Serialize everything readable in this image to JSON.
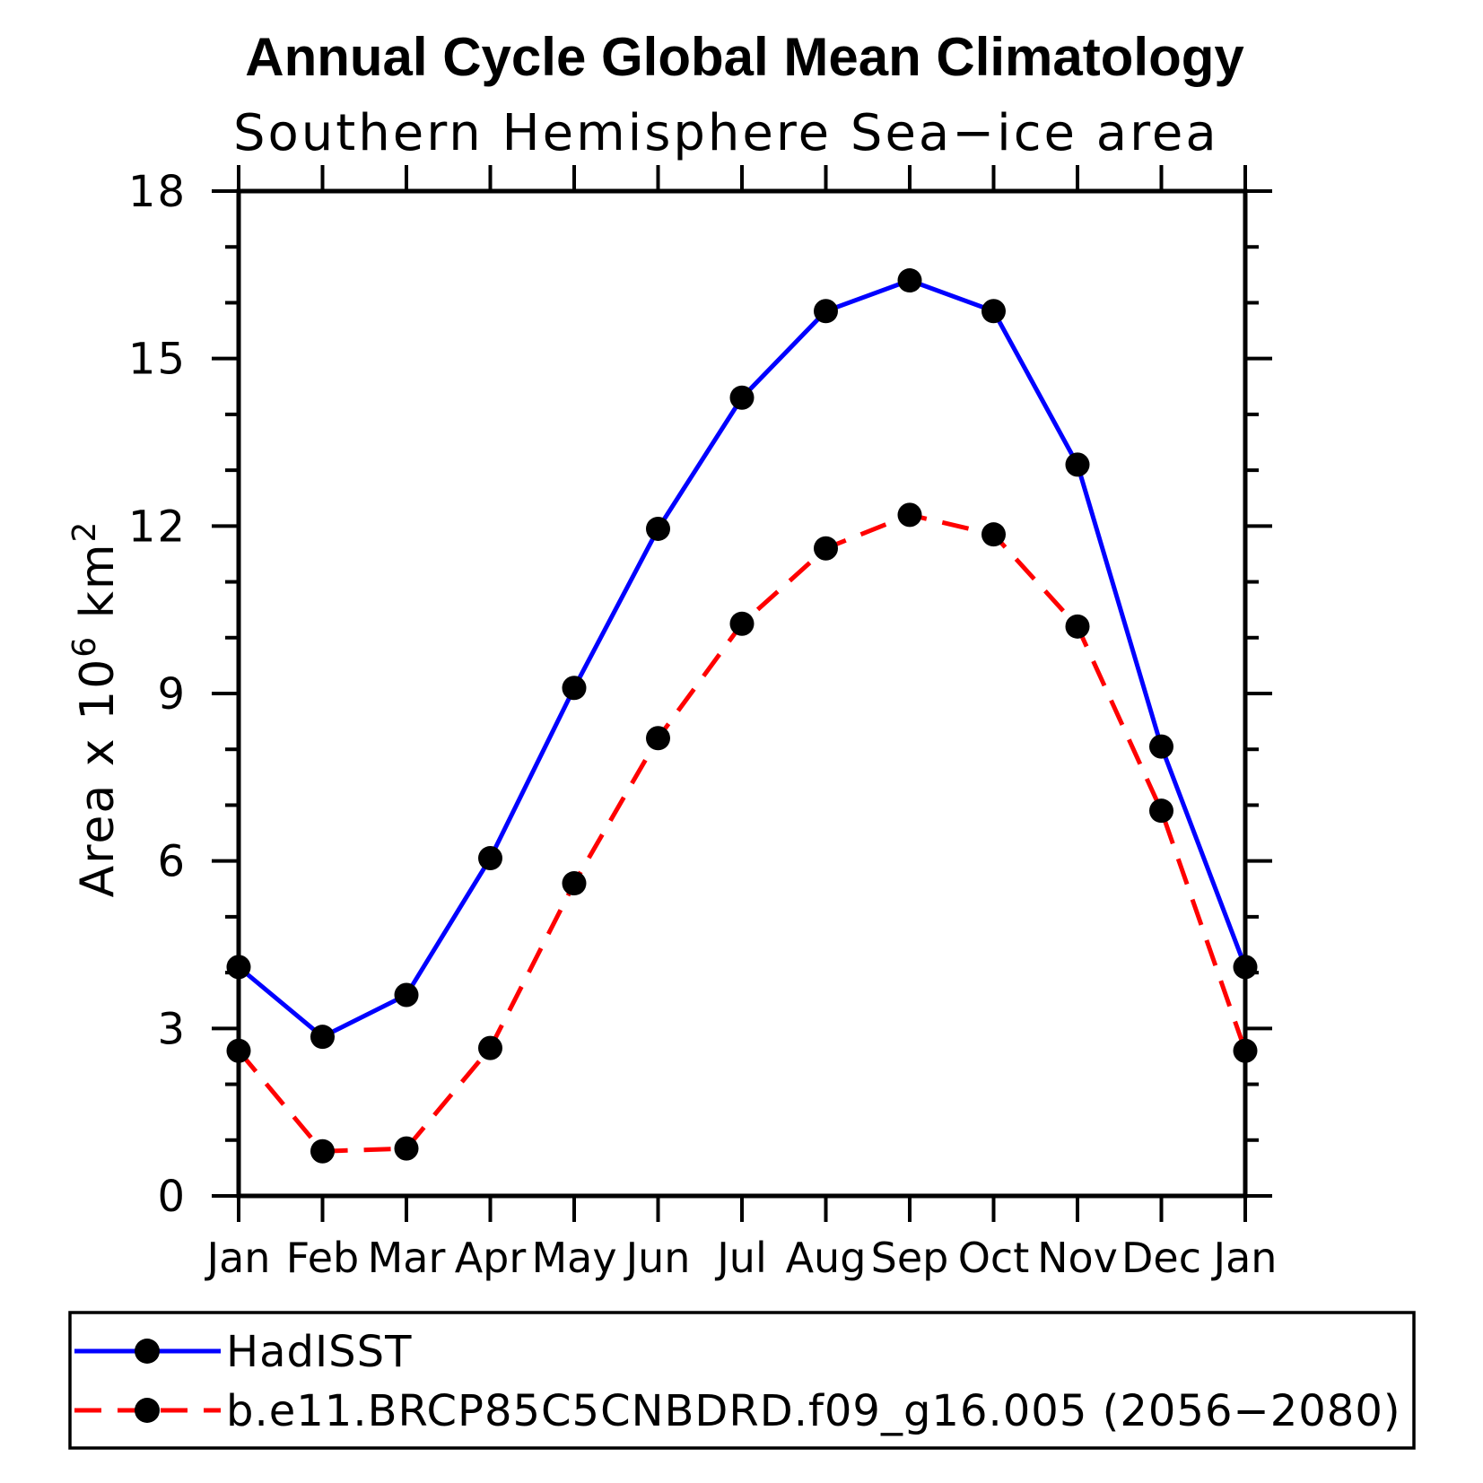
{
  "page": {
    "background": "#ffffff",
    "text_color": "#000000"
  },
  "chart_data": {
    "type": "line",
    "title": "Annual Cycle Global Mean Climatology",
    "subtitle": "Southern Hemisphere Sea−ice area",
    "ylabel_parts": [
      {
        "text": "Area x 10"
      },
      {
        "text": "6",
        "sup": true
      },
      {
        "text": " km"
      },
      {
        "text": "2",
        "sup": true
      }
    ],
    "categories": [
      "Jan",
      "Feb",
      "Mar",
      "Apr",
      "May",
      "Jun",
      "Jul",
      "Aug",
      "Sep",
      "Oct",
      "Nov",
      "Dec",
      "Jan"
    ],
    "ylim": [
      0,
      18
    ],
    "y_major_ticks": [
      0,
      3,
      6,
      9,
      12,
      15,
      18
    ],
    "y_minor_step": 1,
    "grid": false,
    "legend_position": "bottom",
    "series": [
      {
        "name": "HadISST",
        "color": "#0000ff",
        "line_style": "solid",
        "marker": "filled-circle",
        "marker_color": "#000000",
        "values": [
          4.1,
          2.85,
          3.6,
          6.05,
          9.1,
          11.95,
          14.3,
          15.85,
          16.4,
          15.85,
          13.1,
          8.05,
          4.1
        ]
      },
      {
        "name": "b.e11.BRCP85C5CNBDRD.f09_g16.005 (2056−2080)",
        "color": "#ff0000",
        "line_style": "dashed",
        "marker": "filled-circle",
        "marker_color": "#000000",
        "values": [
          2.6,
          0.8,
          0.85,
          2.65,
          5.6,
          8.2,
          10.25,
          11.6,
          12.2,
          11.85,
          10.2,
          6.9,
          2.6
        ]
      }
    ]
  }
}
